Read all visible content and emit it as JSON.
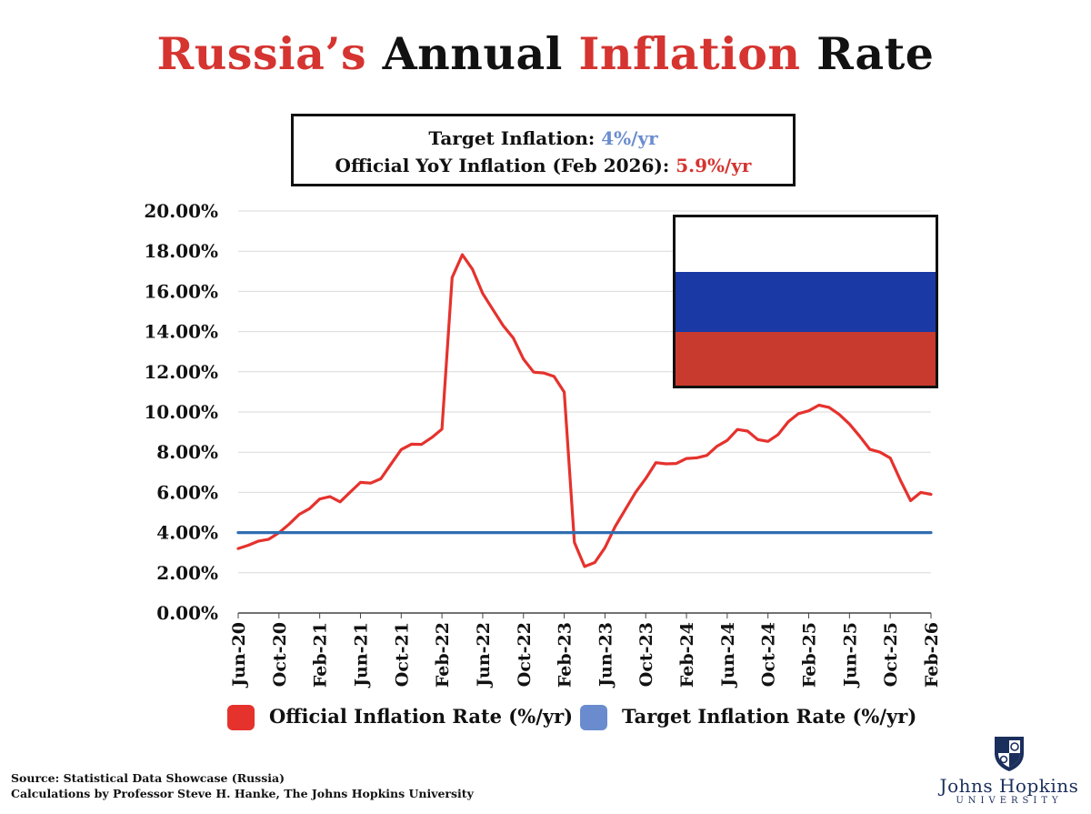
{
  "title": {
    "part1": "Russia’s",
    "part2": "Annual",
    "part3": "Inflation",
    "part4": "Rate"
  },
  "infobox": {
    "line1_label": "Target Inflation: ",
    "line1_value": "4%/yr",
    "line2_label": "Official YoY Inflation (Feb 2026): ",
    "line2_value": "5.9%/yr"
  },
  "colors": {
    "official_line": "#e5322d",
    "target_line": "#2f6db0",
    "target_swatch": "#6a8ccf",
    "official_swatch": "#e5322d",
    "title_red": "#d53430",
    "flag_white": "#ffffff",
    "flag_blue": "#1a39a5",
    "flag_red": "#c93a2e"
  },
  "flag": {
    "icon": "russia-flag-icon"
  },
  "logo": {
    "icon": "jhu-shield-icon",
    "name": "Johns Hopkins",
    "subtitle": "UNIVERSITY"
  },
  "legend": {
    "official": "Official Inflation Rate (%/yr)",
    "target": "Target Inflation Rate (%/yr)"
  },
  "source": {
    "line1": "Source: Statistical Data Showcase (Russia)",
    "line2": "Calculations by Professor Steve H. Hanke, The Johns Hopkins University"
  },
  "chart_data": {
    "type": "line",
    "title": "Russia’s Annual Inflation Rate",
    "xlabel": "",
    "ylabel": "",
    "ylim": [
      0,
      20
    ],
    "yticks": [
      "0.00%",
      "2.00%",
      "4.00%",
      "6.00%",
      "8.00%",
      "10.00%",
      "12.00%",
      "14.00%",
      "16.00%",
      "18.00%",
      "20.00%"
    ],
    "grid": true,
    "legend_position": "bottom",
    "x": [
      "Jun-20",
      "Jul-20",
      "Aug-20",
      "Sep-20",
      "Oct-20",
      "Nov-20",
      "Dec-20",
      "Jan-21",
      "Feb-21",
      "Mar-21",
      "Apr-21",
      "May-21",
      "Jun-21",
      "Jul-21",
      "Aug-21",
      "Sep-21",
      "Oct-21",
      "Nov-21",
      "Dec-21",
      "Jan-22",
      "Feb-22",
      "Mar-22",
      "Apr-22",
      "May-22",
      "Jun-22",
      "Jul-22",
      "Aug-22",
      "Sep-22",
      "Oct-22",
      "Nov-22",
      "Dec-22",
      "Jan-23",
      "Feb-23",
      "Mar-23",
      "Apr-23",
      "May-23",
      "Jun-23",
      "Jul-23",
      "Aug-23",
      "Sep-23",
      "Oct-23",
      "Nov-23",
      "Dec-23",
      "Jan-24",
      "Feb-24",
      "Mar-24",
      "Apr-24",
      "May-24",
      "Jun-24",
      "Jul-24",
      "Aug-24",
      "Sep-24",
      "Oct-24",
      "Nov-24",
      "Dec-24",
      "Jan-25",
      "Feb-25",
      "Mar-25",
      "Apr-25",
      "May-25",
      "Jun-25",
      "Jul-25",
      "Aug-25",
      "Sep-25",
      "Oct-25",
      "Nov-25",
      "Dec-25",
      "Jan-26",
      "Feb-26"
    ],
    "tick_labels": [
      "Jun-20",
      "Oct-20",
      "Feb-21",
      "Jun-21",
      "Oct-21",
      "Feb-22",
      "Jun-22",
      "Oct-22",
      "Feb-23",
      "Jun-23",
      "Oct-23",
      "Feb-24",
      "Jun-24",
      "Oct-24",
      "Feb-25",
      "Jun-25",
      "Oct-25",
      "Feb-26"
    ],
    "series": [
      {
        "name": "Official Inflation Rate (%/yr)",
        "values": [
          3.21,
          3.37,
          3.58,
          3.67,
          3.99,
          4.42,
          4.91,
          5.19,
          5.67,
          5.79,
          5.53,
          6.02,
          6.5,
          6.46,
          6.68,
          7.41,
          8.13,
          8.4,
          8.39,
          8.73,
          9.15,
          16.69,
          17.83,
          17.1,
          15.9,
          15.1,
          14.3,
          13.68,
          12.63,
          11.98,
          11.94,
          11.77,
          10.99,
          3.51,
          2.31,
          2.51,
          3.25,
          4.3,
          5.15,
          6.0,
          6.69,
          7.48,
          7.42,
          7.44,
          7.69,
          7.72,
          7.84,
          8.3,
          8.59,
          9.13,
          9.05,
          8.63,
          8.54,
          8.88,
          9.52,
          9.92,
          10.06,
          10.34,
          10.23,
          9.88,
          9.4,
          8.79,
          8.14,
          8.0,
          7.71,
          6.6,
          5.59,
          6.0,
          5.9
        ]
      },
      {
        "name": "Target Inflation Rate (%/yr)",
        "values": [
          4,
          4,
          4,
          4,
          4,
          4,
          4,
          4,
          4,
          4,
          4,
          4,
          4,
          4,
          4,
          4,
          4,
          4,
          4,
          4,
          4,
          4,
          4,
          4,
          4,
          4,
          4,
          4,
          4,
          4,
          4,
          4,
          4,
          4,
          4,
          4,
          4,
          4,
          4,
          4,
          4,
          4,
          4,
          4,
          4,
          4,
          4,
          4,
          4,
          4,
          4,
          4,
          4,
          4,
          4,
          4,
          4,
          4,
          4,
          4,
          4,
          4,
          4,
          4,
          4,
          4,
          4,
          4,
          4
        ]
      }
    ]
  }
}
